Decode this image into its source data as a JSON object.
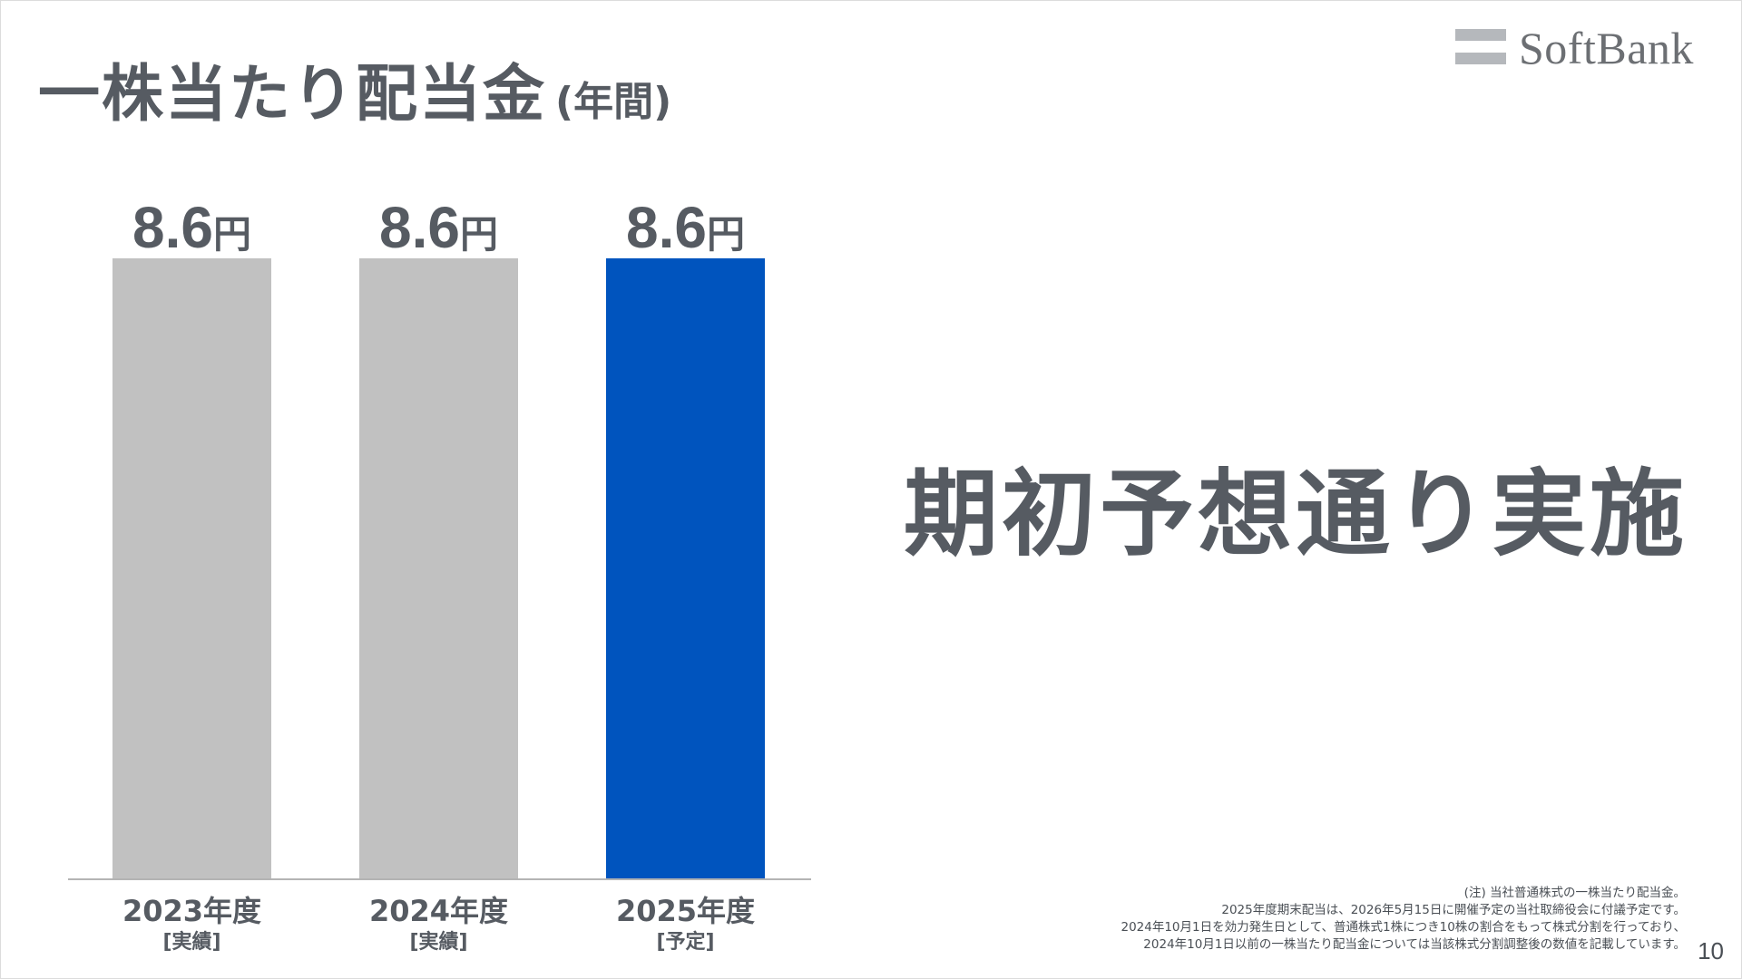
{
  "title": {
    "main": "一株当たり配当金",
    "sub": "(年間)"
  },
  "logo": {
    "text": "SoftBank"
  },
  "headline": "期初予想通り実施",
  "chart_data": {
    "type": "bar",
    "categories": [
      "2023年度",
      "2024年度",
      "2025年度"
    ],
    "category_sublabels": [
      "[実績]",
      "[実績]",
      "[予定]"
    ],
    "values": [
      8.6,
      8.6,
      8.6
    ],
    "value_labels": [
      "8.6",
      "8.6",
      "8.6"
    ],
    "unit": "円",
    "colors": [
      "#c1c1c1",
      "#c1c1c1",
      "#0054be"
    ],
    "ylim": [
      0,
      8.6
    ],
    "grid": false,
    "xlabel": "",
    "ylabel": ""
  },
  "notes": [
    "(注) 当社普通株式の一株当たり配当金。",
    "2025年度期末配当は、2026年5月15日に開催予定の当社取締役会に付議予定です。",
    "2024年10月1日を効力発生日として、普通株式1株につき10株の割合をもって株式分割を行っており、",
    "2024年10月1日以前の一株当たり配当金については当該株式分割調整後の数値を記載しています。"
  ],
  "page_number": "10",
  "colors": {
    "text": "#565b62",
    "bar_actual": "#c1c1c1",
    "bar_plan": "#0054be",
    "axis": "#b4b4b4"
  }
}
